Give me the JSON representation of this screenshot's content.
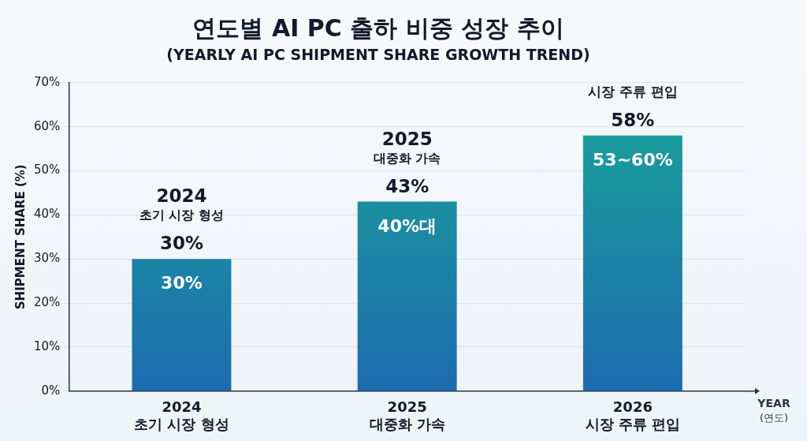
{
  "chart_data": {
    "type": "bar",
    "title": "연도별 AI PC 출하 비중 성장 추이",
    "subtitle": "(YEARLY AI PC SHIPMENT SHARE GROWTH TREND)",
    "x_label": "YEAR (연도)",
    "y_label": "SHIPMENT SHARE (%)",
    "categories": [
      "2024",
      "2025",
      "2026"
    ],
    "category_notes": [
      "초기 시장 형성",
      "대중화 가속",
      "시장 주류 편입"
    ],
    "values": [
      30,
      43,
      58
    ],
    "data_labels": true,
    "value_labels": [
      "30%",
      "43%",
      "58%"
    ],
    "range_labels": [
      "30%",
      "40%대",
      "53~60%"
    ],
    "annotations": [
      {
        "title": "2024",
        "text": "초기 시장 형성"
      },
      {
        "title": "2025",
        "text": "대중화 가속"
      },
      {
        "text": "시장 주류 편입"
      }
    ],
    "color": "#18a697",
    "ylim": [
      0,
      70
    ],
    "yticks": [
      {
        "value": 0,
        "label": "0%"
      },
      {
        "value": 10,
        "label": "10%"
      },
      {
        "value": 20,
        "label": "20%"
      },
      {
        "value": 30,
        "label": "30%"
      },
      {
        "value": 40,
        "label": "40%"
      },
      {
        "value": 50,
        "label": "50%"
      },
      {
        "value": 60,
        "label": "60%"
      },
      {
        "value": 70,
        "label": "70%"
      }
    ],
    "grid": true
  }
}
